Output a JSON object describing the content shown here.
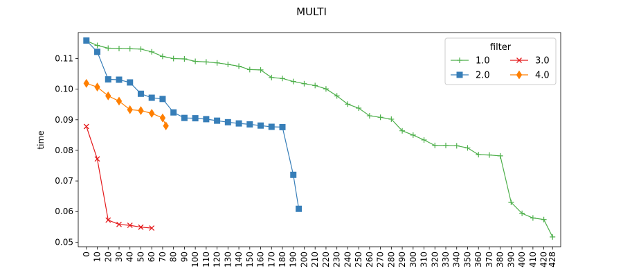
{
  "chart_data": {
    "type": "line",
    "title": "MULTI",
    "xlabel": "",
    "ylabel": "time",
    "ylim": [
      0.0485,
      0.1185
    ],
    "yticks": [
      "0.05",
      "0.06",
      "0.07",
      "0.08",
      "0.09",
      "0.10",
      "0.11"
    ],
    "xticks": [
      "0",
      "10",
      "20",
      "30",
      "40",
      "50",
      "60",
      "70",
      "80",
      "90",
      "100",
      "110",
      "120",
      "130",
      "140",
      "150",
      "160",
      "170",
      "180",
      "190",
      "200",
      "210",
      "220",
      "230",
      "240",
      "250",
      "260",
      "270",
      "280",
      "290",
      "300",
      "310",
      "320",
      "330",
      "340",
      "350",
      "360",
      "370",
      "380",
      "390",
      "400",
      "410",
      "420",
      "428"
    ],
    "grid": false,
    "legend": {
      "title": "filter",
      "placement": "top-right",
      "columns": 2
    },
    "series": [
      {
        "name": "1.0",
        "color": "#4daf4a",
        "marker": "plus",
        "x": [
          0,
          10,
          20,
          30,
          40,
          50,
          60,
          70,
          80,
          90,
          100,
          110,
          120,
          130,
          140,
          150,
          160,
          170,
          180,
          190,
          200,
          210,
          220,
          230,
          240,
          250,
          260,
          270,
          280,
          290,
          300,
          310,
          320,
          330,
          340,
          350,
          360,
          370,
          380,
          390,
          400,
          410,
          420,
          428
        ],
        "y": [
          0.1158,
          0.1143,
          0.1134,
          0.1133,
          0.1132,
          0.1131,
          0.1122,
          0.1107,
          0.11,
          0.1099,
          0.1091,
          0.1089,
          0.1086,
          0.1081,
          0.1075,
          0.1064,
          0.1063,
          0.1038,
          0.1035,
          0.1025,
          0.1018,
          0.1012,
          0.1001,
          0.0978,
          0.0951,
          0.0938,
          0.0913,
          0.0908,
          0.0902,
          0.0864,
          0.085,
          0.0834,
          0.0816,
          0.0816,
          0.0815,
          0.0808,
          0.0786,
          0.0785,
          0.0782,
          0.063,
          0.0594,
          0.0579,
          0.0574,
          0.0517
        ]
      },
      {
        "name": "2.0",
        "color": "#377eb8",
        "marker": "square",
        "x": [
          0,
          10,
          20,
          30,
          40,
          50,
          60,
          70,
          80,
          90,
          100,
          110,
          120,
          130,
          140,
          150,
          160,
          170,
          180,
          190,
          195
        ],
        "y": [
          0.1159,
          0.1122,
          0.1032,
          0.1031,
          0.1022,
          0.0985,
          0.0972,
          0.0968,
          0.0924,
          0.0906,
          0.0905,
          0.0902,
          0.0897,
          0.0892,
          0.0888,
          0.0885,
          0.0881,
          0.0877,
          0.0876,
          0.072,
          0.0609
        ]
      },
      {
        "name": "3.0",
        "color": "#e41a1c",
        "marker": "x",
        "x": [
          0,
          10,
          20,
          30,
          40,
          50,
          60
        ],
        "y": [
          0.0878,
          0.0772,
          0.0572,
          0.0558,
          0.0555,
          0.0549,
          0.0546
        ]
      },
      {
        "name": "4.0",
        "color": "#ff7f00",
        "marker": "diamond",
        "x": [
          0,
          10,
          20,
          30,
          40,
          50,
          60,
          70,
          73
        ],
        "y": [
          0.1019,
          0.1007,
          0.0978,
          0.0961,
          0.0933,
          0.093,
          0.0921,
          0.0906,
          0.088
        ]
      }
    ]
  }
}
